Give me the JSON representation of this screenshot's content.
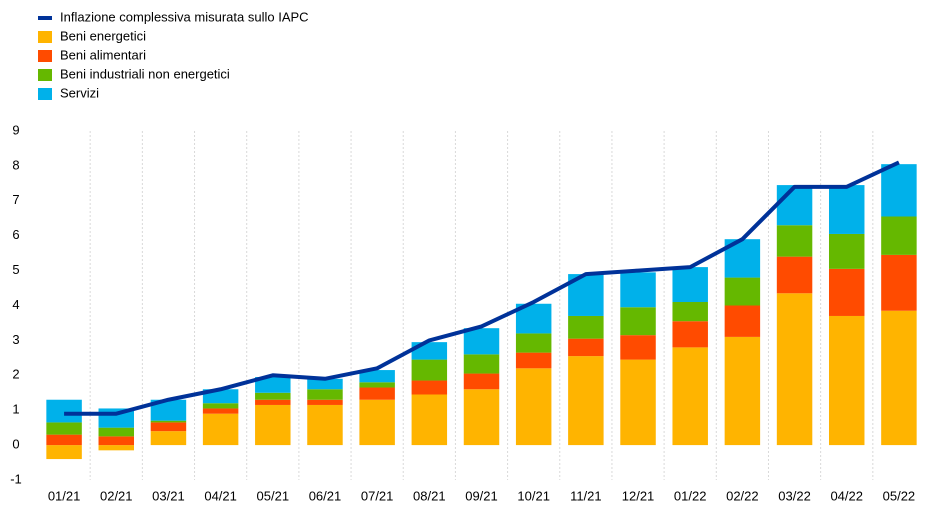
{
  "chart_data": {
    "type": "bar",
    "stacked": true,
    "categories": [
      "01/21",
      "02/21",
      "03/21",
      "04/21",
      "05/21",
      "06/21",
      "07/21",
      "08/21",
      "09/21",
      "10/21",
      "11/21",
      "12/21",
      "01/22",
      "02/22",
      "03/22",
      "04/22",
      "05/22"
    ],
    "series": [
      {
        "name": "Inflazione complessiva misurata sullo IAPC",
        "type": "line",
        "color": "#003299",
        "values": [
          0.9,
          0.9,
          1.3,
          1.6,
          2.0,
          1.9,
          2.2,
          3.0,
          3.4,
          4.1,
          4.9,
          5.0,
          5.1,
          5.9,
          7.4,
          7.4,
          8.1
        ]
      },
      {
        "name": "Beni energetici",
        "color": "#ffb400",
        "values": [
          -0.4,
          -0.15,
          0.4,
          0.9,
          1.15,
          1.15,
          1.3,
          1.45,
          1.6,
          2.2,
          2.55,
          2.45,
          2.8,
          3.1,
          4.35,
          3.7,
          3.85
        ]
      },
      {
        "name": "Beni alimentari",
        "color": "#ff4b00",
        "values": [
          0.3,
          0.25,
          0.25,
          0.15,
          0.15,
          0.15,
          0.35,
          0.4,
          0.45,
          0.45,
          0.5,
          0.7,
          0.75,
          0.9,
          1.05,
          1.35,
          1.6
        ]
      },
      {
        "name": "Beni industriali non energetici",
        "color": "#65b800",
        "values": [
          0.35,
          0.25,
          0.05,
          0.15,
          0.2,
          0.3,
          0.15,
          0.6,
          0.55,
          0.55,
          0.65,
          0.8,
          0.55,
          0.8,
          0.9,
          1.0,
          1.1
        ]
      },
      {
        "name": "Servizi",
        "color": "#00b1ea",
        "values": [
          0.65,
          0.55,
          0.6,
          0.4,
          0.45,
          0.3,
          0.35,
          0.5,
          0.75,
          0.85,
          1.2,
          1.0,
          1.0,
          1.1,
          1.15,
          1.4,
          1.5
        ]
      }
    ],
    "ylim": [
      -1,
      9
    ],
    "yticks": [
      -1,
      0,
      1,
      2,
      3,
      4,
      5,
      6,
      7,
      8,
      9
    ],
    "grid": true,
    "legend": "top-left"
  }
}
